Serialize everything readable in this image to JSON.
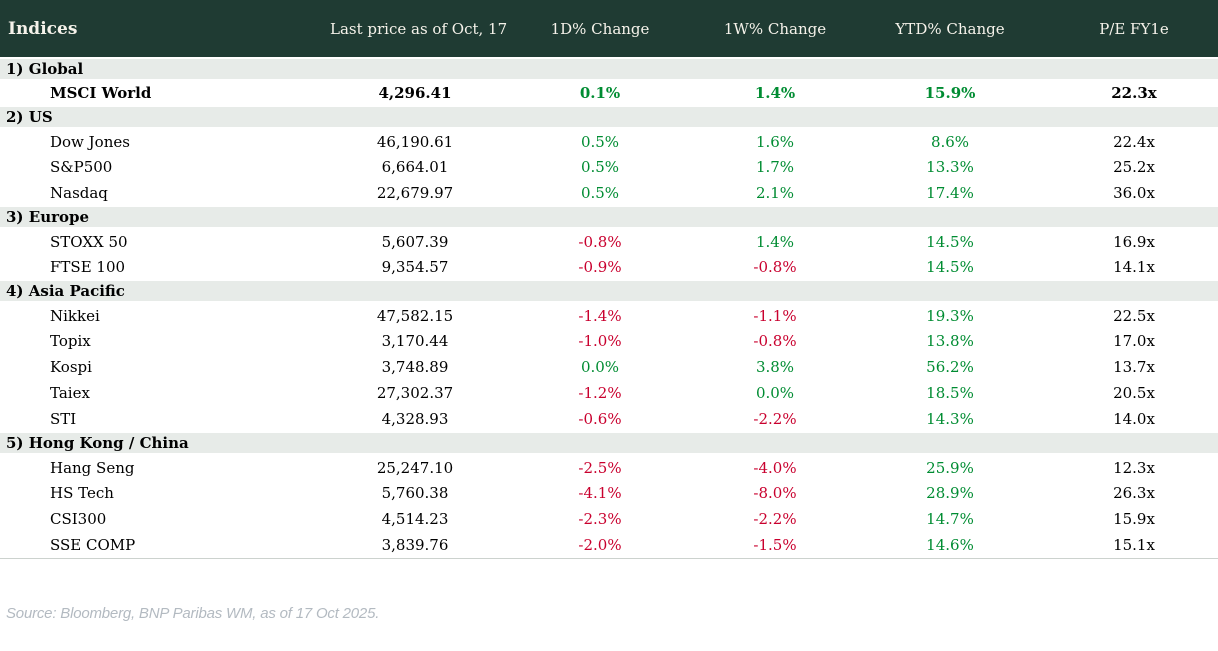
{
  "chart_data": {
    "type": "table",
    "title": "Indices",
    "columns": [
      "Indices",
      "Last price as of Oct, 17",
      "1D% Change",
      "1W% Change",
      "YTD% Change",
      "P/E FY1e"
    ],
    "sections": [
      {
        "label": "1) Global",
        "rows": [
          {
            "name": "MSCI World",
            "bold": true,
            "values": [
              "4,296.41",
              "0.1%",
              "1.4%",
              "15.9%",
              "22.3x"
            ]
          }
        ]
      },
      {
        "label": "2) US",
        "rows": [
          {
            "name": "Dow Jones",
            "bold": false,
            "values": [
              "46,190.61",
              "0.5%",
              "1.6%",
              "8.6%",
              "22.4x"
            ]
          },
          {
            "name": "S&P500",
            "bold": false,
            "values": [
              "6,664.01",
              "0.5%",
              "1.7%",
              "13.3%",
              "25.2x"
            ]
          },
          {
            "name": "Nasdaq",
            "bold": false,
            "values": [
              "22,679.97",
              "0.5%",
              "2.1%",
              "17.4%",
              "36.0x"
            ]
          }
        ]
      },
      {
        "label": "3) Europe",
        "rows": [
          {
            "name": "STOXX 50",
            "bold": false,
            "values": [
              "5,607.39",
              "-0.8%",
              "1.4%",
              "14.5%",
              "16.9x"
            ]
          },
          {
            "name": "FTSE 100",
            "bold": false,
            "values": [
              "9,354.57",
              "-0.9%",
              "-0.8%",
              "14.5%",
              "14.1x"
            ]
          }
        ]
      },
      {
        "label": "4) Asia Pacific",
        "rows": [
          {
            "name": "Nikkei",
            "bold": false,
            "values": [
              "47,582.15",
              "-1.4%",
              "-1.1%",
              "19.3%",
              "22.5x"
            ]
          },
          {
            "name": "Topix",
            "bold": false,
            "values": [
              "3,170.44",
              "-1.0%",
              "-0.8%",
              "13.8%",
              "17.0x"
            ]
          },
          {
            "name": "Kospi",
            "bold": false,
            "values": [
              "3,748.89",
              "0.0%",
              "3.8%",
              "56.2%",
              "13.7x"
            ]
          },
          {
            "name": "Taiex",
            "bold": false,
            "values": [
              "27,302.37",
              "-1.2%",
              "0.0%",
              "18.5%",
              "20.5x"
            ]
          },
          {
            "name": "STI",
            "bold": false,
            "values": [
              "4,328.93",
              "-0.6%",
              "-2.2%",
              "14.3%",
              "14.0x"
            ]
          }
        ]
      },
      {
        "label": "5) Hong Kong / China",
        "rows": [
          {
            "name": "Hang Seng",
            "bold": false,
            "values": [
              "25,247.10",
              "-2.5%",
              "-4.0%",
              "25.9%",
              "12.3x"
            ]
          },
          {
            "name": "HS Tech",
            "bold": false,
            "values": [
              "5,760.38",
              "-4.1%",
              "-8.0%",
              "28.9%",
              "26.3x"
            ]
          },
          {
            "name": "CSI300",
            "bold": false,
            "values": [
              "4,514.23",
              "-2.3%",
              "-2.2%",
              "14.7%",
              "15.9x"
            ]
          },
          {
            "name": "SSE COMP",
            "bold": false,
            "values": [
              "3,839.76",
              "-2.0%",
              "-1.5%",
              "14.6%",
              "15.1x"
            ]
          }
        ]
      }
    ]
  },
  "footer": {
    "source_note": "Source: Bloomberg, BNP Paribas WM, as of 17 Oct 2025."
  },
  "colors": {
    "header_bg": "#1f3b33",
    "header_text": "#f5f2ea",
    "section_bg": "#e7ebe8",
    "positive": "#008c32",
    "negative": "#c9002e",
    "source_text": "#b3bac1"
  }
}
